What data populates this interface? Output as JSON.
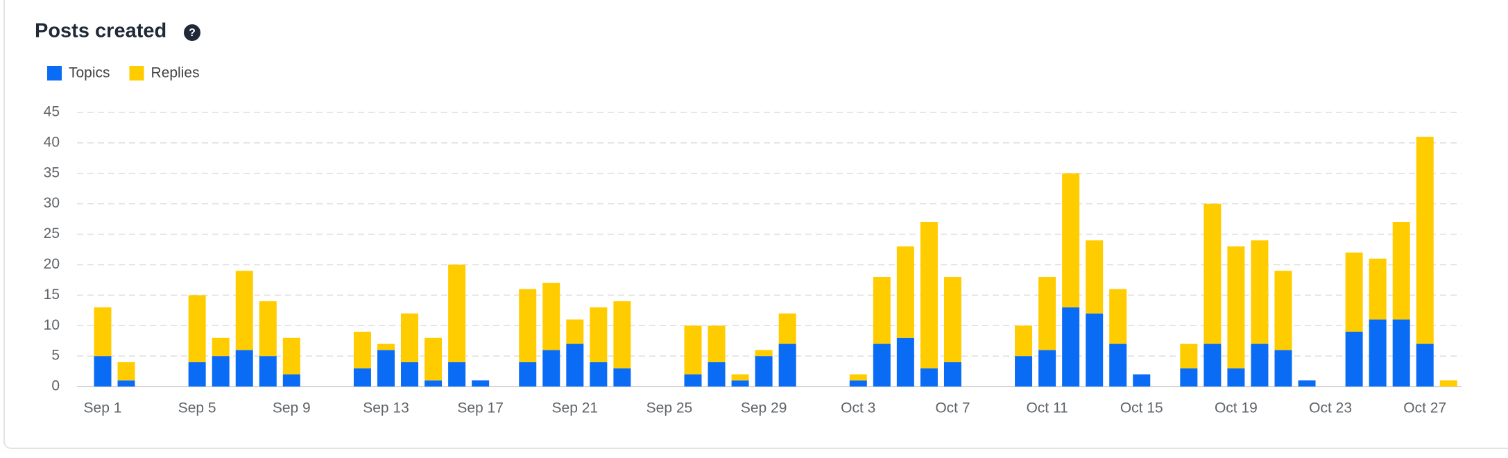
{
  "chart_data": {
    "type": "stacked_bar",
    "title": "Posts created",
    "categories": [
      "Sep 1",
      null,
      null,
      null,
      "Sep 5",
      null,
      null,
      null,
      "Sep 9",
      null,
      null,
      null,
      "Sep 13",
      null,
      null,
      null,
      "Sep 17",
      null,
      null,
      null,
      "Sep 21",
      null,
      null,
      null,
      "Sep 25",
      null,
      null,
      null,
      "Sep 29",
      null,
      null,
      null,
      "Oct 3",
      null,
      null,
      null,
      "Oct 7",
      null,
      null,
      null,
      "Oct 11",
      null,
      null,
      null,
      "Oct 15",
      null,
      null,
      null,
      "Oct 19",
      null,
      null,
      null,
      "Oct 23",
      null,
      null,
      null,
      "Oct 27",
      null
    ],
    "series": [
      {
        "name": "Topics",
        "color": "#0a6cf5",
        "values": [
          5,
          1,
          0,
          0,
          4,
          5,
          6,
          5,
          2,
          0,
          0,
          3,
          6,
          4,
          1,
          4,
          1,
          0,
          4,
          6,
          7,
          4,
          3,
          0,
          0,
          2,
          4,
          1,
          5,
          7,
          0,
          0,
          1,
          7,
          8,
          3,
          4,
          0,
          0,
          5,
          6,
          13,
          12,
          7,
          2,
          0,
          3,
          7,
          3,
          7,
          6,
          1,
          0,
          9,
          11,
          11,
          7,
          0
        ]
      },
      {
        "name": "Replies",
        "color": "#ffcc00",
        "values": [
          8,
          3,
          0,
          0,
          11,
          3,
          13,
          9,
          6,
          0,
          0,
          6,
          1,
          8,
          7,
          16,
          0,
          0,
          12,
          11,
          4,
          9,
          11,
          0,
          0,
          8,
          6,
          1,
          1,
          5,
          0,
          0,
          1,
          11,
          15,
          24,
          14,
          0,
          0,
          5,
          12,
          22,
          12,
          9,
          0,
          0,
          4,
          23,
          20,
          17,
          13,
          0,
          0,
          13,
          10,
          16,
          34,
          1
        ]
      }
    ],
    "ylim": [
      0,
      45
    ],
    "yticks": [
      0,
      5,
      10,
      15,
      20,
      25,
      30,
      35,
      40,
      45
    ],
    "grid": true,
    "legend": "top-left"
  }
}
